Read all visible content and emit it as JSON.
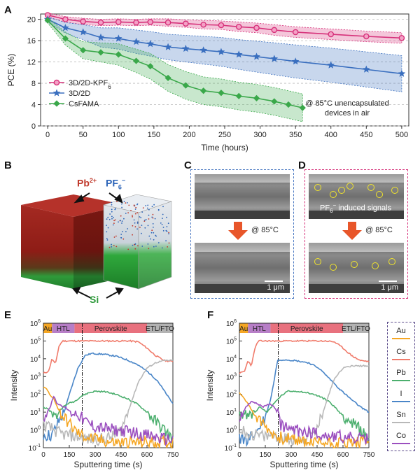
{
  "panels": {
    "a": "A",
    "b": "B",
    "c": "C",
    "d": "D",
    "e": "E",
    "f": "F"
  },
  "chart_data": [
    {
      "type": "line",
      "panel": "A",
      "xlabel": "Time (hours)",
      "ylabel": "PCE (%)",
      "xlim": [
        -10,
        510
      ],
      "ylim": [
        0,
        21
      ],
      "xticks": [
        0,
        50,
        100,
        150,
        200,
        250,
        300,
        350,
        400,
        450,
        500
      ],
      "yticks": [
        0,
        4,
        8,
        12,
        16,
        20
      ],
      "annotation_line1": "@ 85°C unencapsulated",
      "annotation_line2": "devices in air",
      "legend_position": "left",
      "series": [
        {
          "name": "3D/2D-KPF",
          "name_sub": "6",
          "color": "#d6317a",
          "marker": "circle",
          "x": [
            0,
            25,
            50,
            75,
            100,
            125,
            145,
            170,
            195,
            220,
            245,
            270,
            295,
            320,
            350,
            400,
            450,
            500
          ],
          "y": [
            20.8,
            20.0,
            19.6,
            19.4,
            19.5,
            19.4,
            19.5,
            19.4,
            19.2,
            19.0,
            18.9,
            18.6,
            18.4,
            18.0,
            17.6,
            17.2,
            16.8,
            16.5
          ],
          "band": [
            0.4,
            0.5,
            0.6,
            0.6,
            0.6,
            0.6,
            0.6,
            0.7,
            0.7,
            0.8,
            0.8,
            0.9,
            0.9,
            1.0,
            1.0,
            1.0,
            1.0,
            1.0
          ]
        },
        {
          "name": "3D/2D",
          "color": "#3a6fbf",
          "marker": "star",
          "x": [
            0,
            25,
            50,
            75,
            100,
            125,
            145,
            170,
            195,
            220,
            245,
            270,
            295,
            320,
            350,
            400,
            450,
            500
          ],
          "y": [
            20.0,
            18.4,
            17.6,
            16.6,
            16.4,
            15.8,
            15.4,
            14.8,
            14.5,
            14.2,
            13.9,
            13.4,
            13.0,
            12.6,
            12.1,
            11.4,
            10.6,
            9.8
          ],
          "band": [
            0.5,
            1.0,
            1.4,
            1.8,
            2.0,
            2.2,
            2.3,
            2.4,
            2.5,
            2.6,
            2.7,
            2.8,
            2.9,
            3.0,
            3.1,
            3.2,
            3.3,
            3.4
          ]
        },
        {
          "name": "CsFAMA",
          "color": "#3aa84a",
          "marker": "diamond",
          "x": [
            0,
            25,
            50,
            75,
            100,
            125,
            145,
            170,
            195,
            220,
            245,
            270,
            295,
            320,
            340,
            360
          ],
          "y": [
            19.8,
            16.4,
            14.2,
            13.8,
            13.4,
            12.2,
            11.2,
            9.0,
            7.6,
            6.6,
            6.2,
            5.6,
            5.2,
            4.6,
            4.0,
            3.4
          ],
          "band": [
            0.5,
            1.2,
            1.6,
            1.8,
            2.0,
            2.2,
            2.4,
            2.5,
            2.6,
            2.6,
            2.6,
            2.6,
            2.6,
            2.6,
            2.6,
            2.6
          ]
        }
      ]
    },
    {
      "type": "line",
      "panel": "E",
      "xlabel": "Sputtering time (s)",
      "ylabel": "Intensity",
      "xlim": [
        0,
        750
      ],
      "ylim": [
        0.1,
        1000000
      ],
      "yscale": "log",
      "xticks": [
        0,
        150,
        300,
        450,
        600,
        750
      ],
      "yticks": [
        "10-1",
        "100",
        "101",
        "102",
        "103",
        "104",
        "105",
        "106"
      ],
      "layers": [
        {
          "label": "Au",
          "from": 0,
          "to": 50,
          "color": "#f5a623"
        },
        {
          "label": "HTL",
          "from": 50,
          "to": 180,
          "color": "#b77ec7"
        },
        {
          "label": "Perovskite",
          "from": 180,
          "to": 600,
          "color": "#e8717e"
        },
        {
          "label": "ETL/FTO",
          "from": 600,
          "to": 750,
          "color": "#b3b3b3"
        }
      ],
      "interface_x": 225,
      "series": [
        {
          "name": "Cs",
          "color": "#f07b6b",
          "x": [
            0,
            30,
            50,
            70,
            90,
            110,
            130,
            150,
            200,
            250,
            300,
            400,
            500,
            550,
            600,
            650,
            700,
            750
          ],
          "y": [
            1500,
            2000,
            10000,
            5000,
            50000,
            100000,
            100000,
            100000,
            100000,
            100000,
            100000,
            100000,
            100000,
            90000,
            40000,
            15000,
            8000,
            7000
          ]
        },
        {
          "name": "I",
          "color": "#4a86c8",
          "x": [
            0,
            50,
            80,
            120,
            160,
            200,
            240,
            280,
            350,
            420,
            480,
            540,
            600,
            660,
            720,
            750
          ],
          "y": [
            0.5,
            0.5,
            2,
            10,
            200,
            3000,
            15000,
            20000,
            18000,
            14000,
            9000,
            5000,
            2000,
            600,
            80,
            30
          ]
        },
        {
          "name": "Pb",
          "color": "#4caf6e",
          "x": [
            0,
            50,
            70,
            100,
            140,
            180,
            220,
            260,
            300,
            360,
            420,
            480,
            540,
            600,
            650,
            700,
            750
          ],
          "y": [
            20,
            10,
            5,
            15,
            30,
            40,
            80,
            120,
            150,
            140,
            100,
            60,
            30,
            10,
            3,
            1,
            0.3
          ]
        },
        {
          "name": "Sn",
          "color": "#b8b8b8",
          "x": [
            0,
            60,
            100,
            150,
            200,
            260,
            330,
            400,
            450,
            500,
            550,
            600,
            650,
            700,
            750
          ],
          "y": [
            2,
            1,
            0.6,
            0.5,
            0.4,
            0.3,
            0.3,
            0.4,
            1,
            20,
            500,
            3000,
            6000,
            8000,
            8000
          ]
        },
        {
          "name": "Au",
          "color": "#f5a623",
          "x": [
            0,
            20,
            40,
            60,
            80,
            100,
            140,
            180,
            220,
            300,
            400,
            500,
            600,
            700,
            750
          ],
          "y": [
            250,
            200,
            80,
            60,
            20,
            8,
            3,
            1,
            0.5,
            0.3,
            0.2,
            0.2,
            0.2,
            0.2,
            0.2
          ]
        },
        {
          "name": "Co",
          "color": "#9b4fbf",
          "x": [
            0,
            40,
            60,
            80,
            120,
            160,
            200,
            240,
            300,
            400,
            500,
            600,
            700,
            750
          ],
          "y": [
            5,
            20,
            80,
            30,
            20,
            10,
            8,
            3,
            1.5,
            1,
            0.8,
            0.5,
            0.3,
            0.3
          ]
        }
      ]
    },
    {
      "type": "line",
      "panel": "F",
      "xlabel": "Sputtering time (s)",
      "ylabel": "Intensity",
      "xlim": [
        0,
        750
      ],
      "ylim": [
        0.1,
        1000000
      ],
      "yscale": "log",
      "xticks": [
        0,
        150,
        300,
        450,
        600,
        750
      ],
      "yticks": [
        "10-1",
        "100",
        "101",
        "102",
        "103",
        "104",
        "105",
        "106"
      ],
      "layers": [
        {
          "label": "Au",
          "from": 0,
          "to": 50,
          "color": "#f5a623"
        },
        {
          "label": "HTL",
          "from": 50,
          "to": 180,
          "color": "#b77ec7"
        },
        {
          "label": "Perovskite",
          "from": 180,
          "to": 600,
          "color": "#e8717e"
        },
        {
          "label": "ETL/FTO",
          "from": 600,
          "to": 750,
          "color": "#b3b3b3"
        }
      ],
      "interface_x": 225,
      "series": [
        {
          "name": "Cs",
          "color": "#f07b6b",
          "x": [
            0,
            30,
            50,
            70,
            90,
            110,
            130,
            150,
            200,
            250,
            300,
            400,
            500,
            550,
            600,
            650,
            700,
            750
          ],
          "y": [
            1500,
            2000,
            8000,
            4000,
            40000,
            100000,
            100000,
            100000,
            100000,
            100000,
            100000,
            100000,
            100000,
            90000,
            40000,
            15000,
            8000,
            7000
          ]
        },
        {
          "name": "I",
          "color": "#4a86c8",
          "x": [
            0,
            50,
            100,
            150,
            180,
            200,
            220,
            260,
            320,
            400,
            460,
            520,
            580,
            640,
            700,
            750
          ],
          "y": [
            0.3,
            0.3,
            0.8,
            5,
            50,
            500,
            8000,
            9000,
            8000,
            6000,
            3000,
            800,
            200,
            60,
            20,
            10
          ]
        },
        {
          "name": "Pb",
          "color": "#4caf6e",
          "x": [
            0,
            50,
            80,
            120,
            160,
            200,
            240,
            280,
            340,
            400,
            460,
            520,
            580,
            640,
            700,
            750
          ],
          "y": [
            10,
            5,
            8,
            20,
            10,
            30,
            80,
            150,
            150,
            120,
            80,
            40,
            10,
            3,
            1,
            0.3
          ]
        },
        {
          "name": "Sn",
          "color": "#b8b8b8",
          "x": [
            0,
            60,
            100,
            150,
            200,
            260,
            330,
            400,
            450,
            500,
            550,
            600,
            650,
            700,
            750
          ],
          "y": [
            1,
            0.6,
            0.5,
            0.4,
            0.5,
            0.3,
            0.3,
            0.4,
            1,
            30,
            800,
            3000,
            4000,
            4000,
            4000
          ]
        },
        {
          "name": "Au",
          "color": "#f5a623",
          "x": [
            0,
            20,
            40,
            60,
            80,
            100,
            140,
            180,
            220,
            300,
            400,
            500,
            600,
            700,
            750
          ],
          "y": [
            120,
            80,
            40,
            20,
            10,
            5,
            2,
            0.8,
            0.4,
            0.3,
            0.2,
            0.2,
            0.2,
            0.2,
            0.2
          ]
        },
        {
          "name": "Co",
          "color": "#9b4fbf",
          "x": [
            0,
            40,
            70,
            100,
            140,
            180,
            210,
            240,
            300,
            400,
            500,
            600,
            700,
            750
          ],
          "y": [
            5,
            20,
            40,
            30,
            20,
            30,
            15,
            2,
            1,
            0.8,
            0.5,
            0.4,
            0.3,
            0.3
          ]
        }
      ]
    }
  ],
  "tof_legend": [
    "Au",
    "Cs",
    "Pb",
    "I",
    "Sn",
    "Co"
  ],
  "panel_b": {
    "pb_label": "Pb",
    "pb_sup": "2+",
    "pf_label": "PF",
    "pf_sub": "6",
    "pf_sup": "−",
    "si_label": "Si"
  },
  "panel_c": {
    "temp_label": "@ 85°C",
    "scale_label": "1 μm"
  },
  "panel_d": {
    "temp_label": "@ 85°C",
    "scale_label": "1 μm",
    "signal_pf": "PF",
    "signal_sub": "6",
    "signal_sup": "−",
    "signal_rest": " induced signals"
  }
}
